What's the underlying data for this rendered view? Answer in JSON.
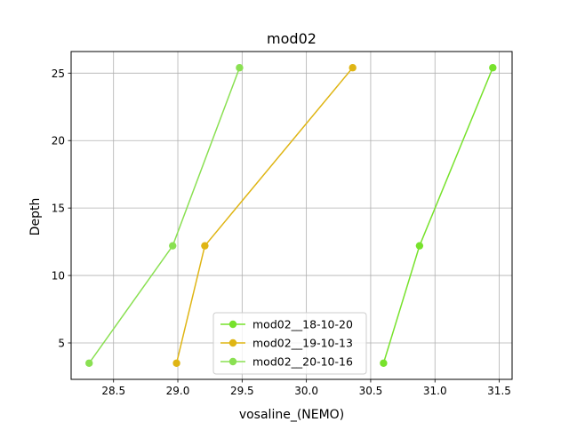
{
  "chart_data": {
    "type": "line",
    "title": "mod02",
    "xlabel": "vosaline_(NEMO)",
    "ylabel": "Depth",
    "xlim": [
      28.17,
      31.6
    ],
    "ylim": [
      2.3,
      26.6
    ],
    "xticks": [
      28.5,
      29.0,
      29.5,
      30.0,
      30.5,
      31.0,
      31.5
    ],
    "xtick_labels": [
      "28.5",
      "29.0",
      "29.5",
      "30.0",
      "30.5",
      "31.0",
      "31.5"
    ],
    "yticks": [
      5,
      10,
      15,
      20,
      25
    ],
    "ytick_labels": [
      "5",
      "10",
      "15",
      "20",
      "25"
    ],
    "grid": true,
    "legend_position": "bottom-center",
    "series": [
      {
        "name": "mod02__18-10-20",
        "color": "#77e22c",
        "points": [
          [
            30.6,
            3.5
          ],
          [
            30.88,
            12.2
          ],
          [
            31.45,
            25.4
          ]
        ]
      },
      {
        "name": "mod02__19-10-13",
        "color": "#dfb514",
        "points": [
          [
            28.99,
            3.5
          ],
          [
            29.21,
            12.2
          ],
          [
            30.36,
            25.4
          ]
        ]
      },
      {
        "name": "mod02__20-10-16",
        "color": "#8ae052",
        "points": [
          [
            28.31,
            3.5
          ],
          [
            28.96,
            12.2
          ],
          [
            29.48,
            25.4
          ]
        ]
      }
    ]
  }
}
